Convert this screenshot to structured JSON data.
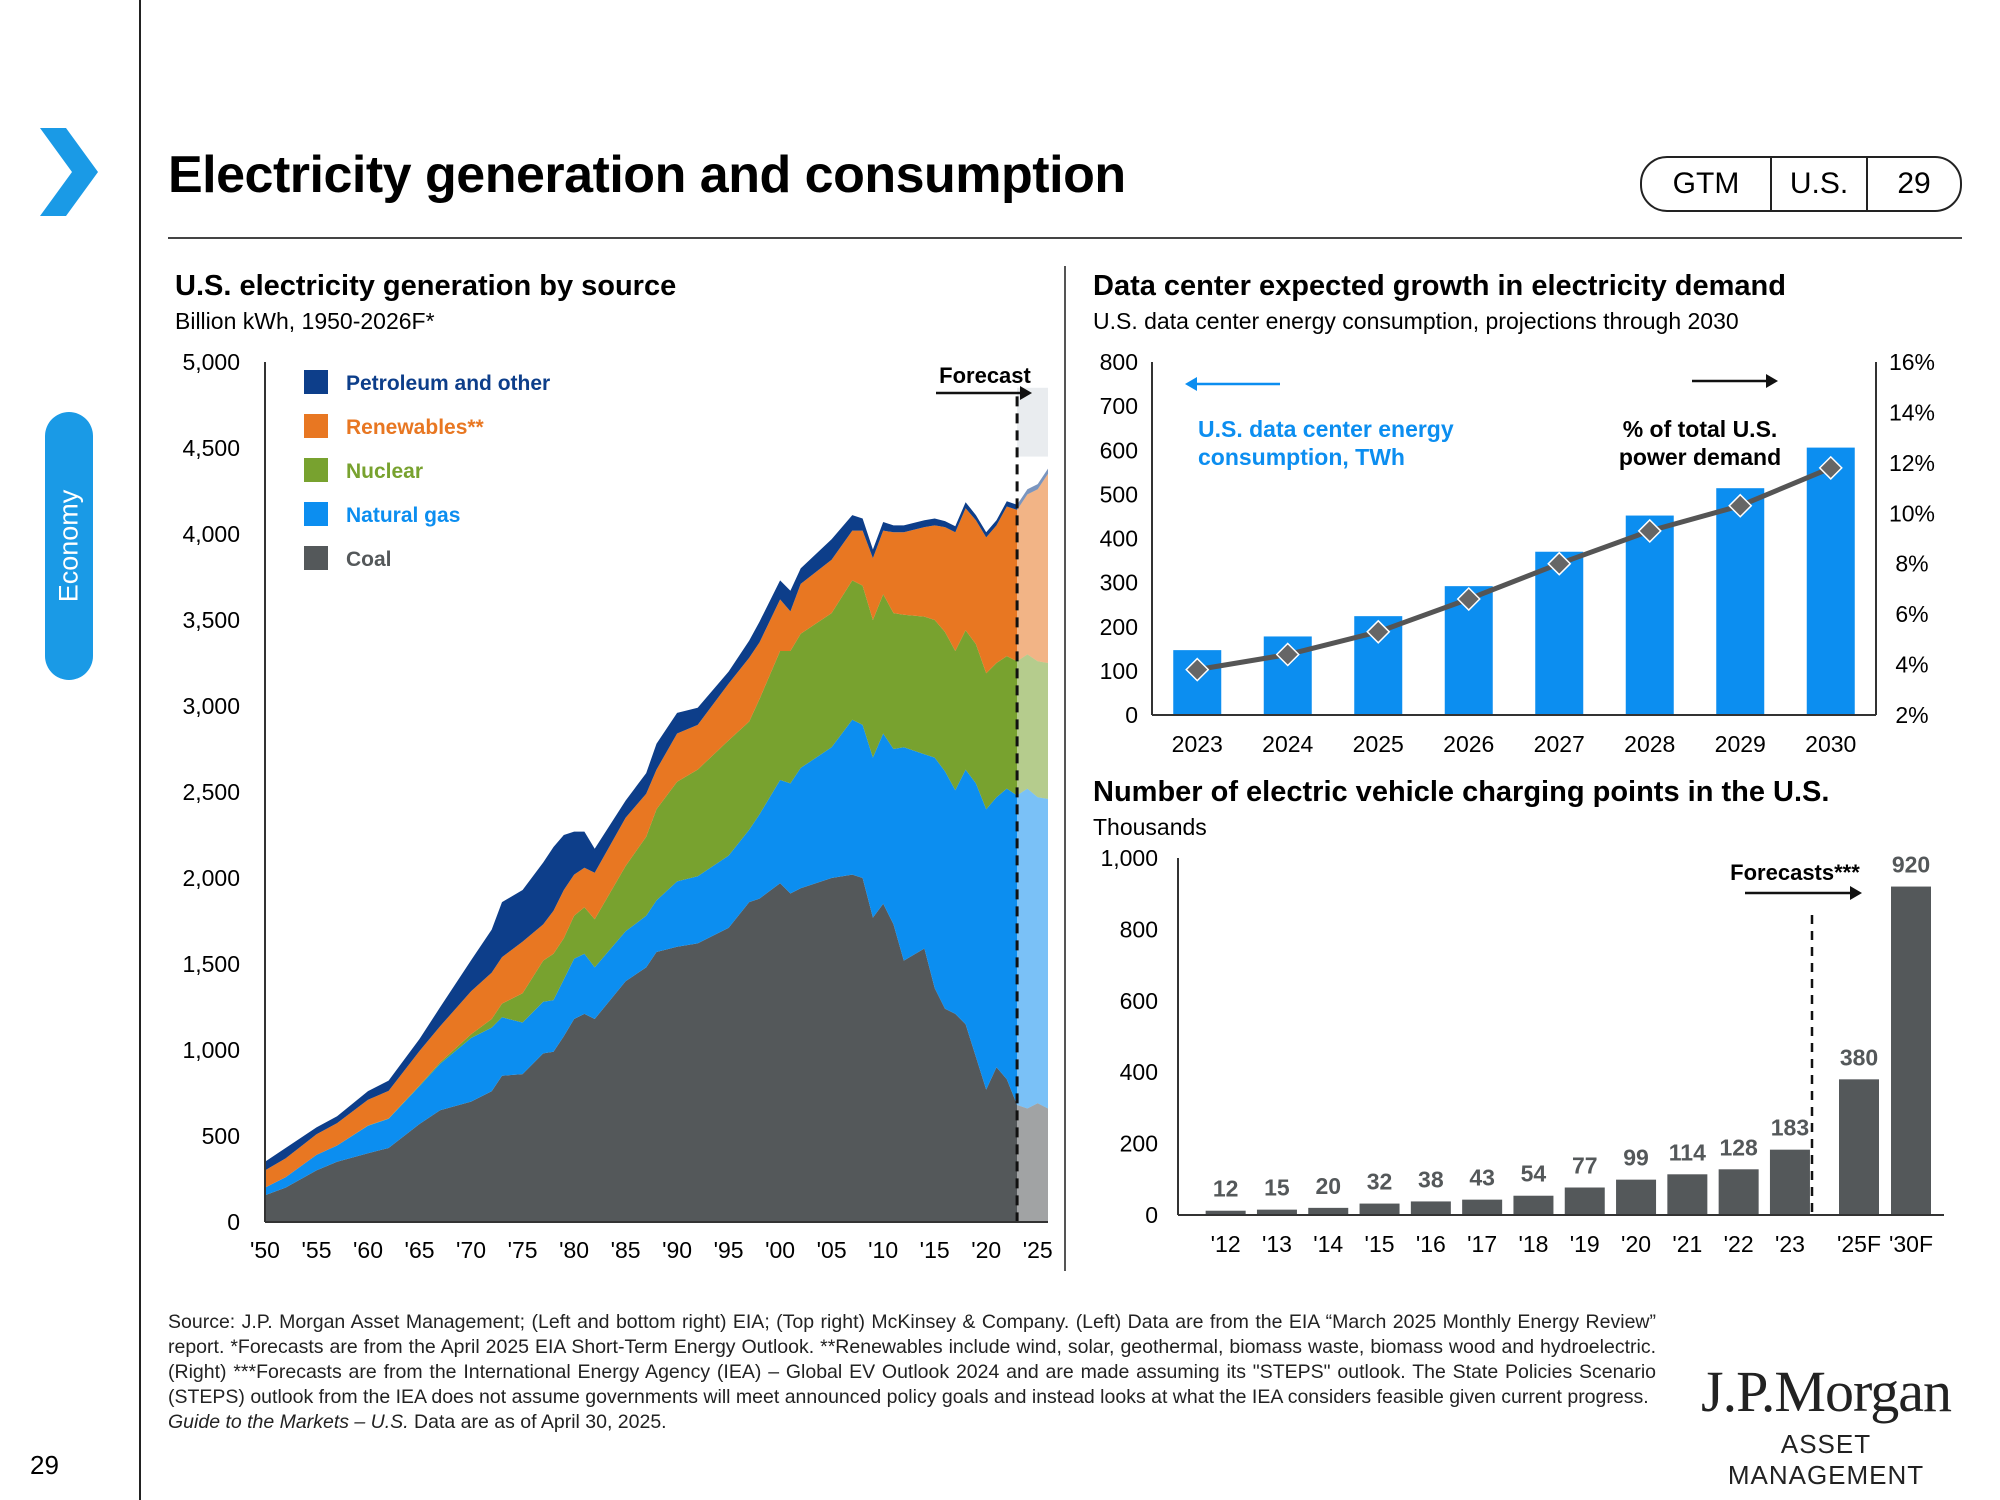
{
  "header": {
    "title": "Electricity generation and consumption",
    "tags": [
      "GTM",
      "U.S.",
      "29"
    ],
    "section": "Economy",
    "page_number": "29"
  },
  "colors": {
    "brand_blue": "#1a9ae6",
    "coal": "#54585a",
    "natural_gas": "#0c8ef0",
    "nuclear": "#78a22f",
    "renewables": "#e87722",
    "petroleum": "#0d3e8a"
  },
  "chart_data": [
    {
      "type": "area",
      "title": "U.S. electricity generation by source",
      "subtitle": "Billion kWh, 1950-2026F*",
      "x_ticks": [
        "'50",
        "'55",
        "'60",
        "'65",
        "'70",
        "'75",
        "'80",
        "'85",
        "'90",
        "'95",
        "'00",
        "'05",
        "'10",
        "'15",
        "'20",
        "'25"
      ],
      "y_ticks": [
        "0",
        "500",
        "1,000",
        "1,500",
        "2,000",
        "2,500",
        "3,000",
        "3,500",
        "4,000",
        "4,500",
        "5,000"
      ],
      "ylim": [
        0,
        5000
      ],
      "xlim": [
        1950,
        2026
      ],
      "forecast_label": "Forecast",
      "forecast_start": 2023,
      "legend_position": "top-left",
      "x": [
        1950,
        1952,
        1955,
        1957,
        1960,
        1962,
        1965,
        1967,
        1970,
        1972,
        1973,
        1975,
        1977,
        1978,
        1979,
        1980,
        1981,
        1982,
        1985,
        1987,
        1988,
        1990,
        1992,
        1995,
        1997,
        1998,
        2000,
        2001,
        2002,
        2005,
        2007,
        2008,
        2009,
        2010,
        2011,
        2012,
        2014,
        2015,
        2016,
        2017,
        2018,
        2019,
        2020,
        2021,
        2022,
        2023,
        2024,
        2025,
        2026
      ],
      "series": [
        {
          "name": "Coal",
          "values": [
            155,
            200,
            300,
            350,
            400,
            430,
            570,
            650,
            700,
            760,
            850,
            860,
            980,
            990,
            1080,
            1180,
            1210,
            1180,
            1400,
            1480,
            1570,
            1600,
            1620,
            1710,
            1860,
            1880,
            1970,
            1910,
            1940,
            2000,
            2020,
            2000,
            1770,
            1850,
            1730,
            1520,
            1590,
            1360,
            1240,
            1210,
            1150,
            960,
            770,
            900,
            830,
            680,
            660,
            690,
            660
          ]
        },
        {
          "name": "Natural gas",
          "values": [
            45,
            60,
            90,
            95,
            160,
            170,
            220,
            270,
            370,
            370,
            340,
            300,
            300,
            300,
            330,
            350,
            350,
            300,
            290,
            300,
            300,
            380,
            390,
            420,
            420,
            490,
            600,
            640,
            700,
            760,
            900,
            890,
            930,
            990,
            1020,
            1240,
            1130,
            1340,
            1380,
            1300,
            1480,
            1590,
            1630,
            1570,
            1690,
            1800,
            1860,
            1780,
            1800
          ]
        },
        {
          "name": "Nuclear",
          "values": [
            0,
            0,
            0,
            0,
            1,
            2,
            4,
            8,
            22,
            50,
            80,
            170,
            240,
            270,
            240,
            250,
            270,
            280,
            380,
            460,
            530,
            580,
            620,
            670,
            630,
            670,
            750,
            770,
            780,
            780,
            810,
            810,
            800,
            810,
            790,
            770,
            800,
            800,
            810,
            810,
            810,
            810,
            790,
            780,
            770,
            780,
            780,
            790,
            790
          ]
        },
        {
          "name": "Renewables**",
          "values": [
            100,
            110,
            120,
            130,
            150,
            160,
            200,
            210,
            250,
            270,
            270,
            300,
            210,
            250,
            280,
            240,
            230,
            270,
            280,
            250,
            230,
            280,
            260,
            330,
            370,
            330,
            300,
            230,
            290,
            310,
            290,
            320,
            360,
            370,
            470,
            480,
            520,
            550,
            610,
            690,
            710,
            720,
            790,
            800,
            870,
            880,
            930,
            1000,
            1100
          ]
        },
        {
          "name": "Petroleum and other",
          "values": [
            50,
            60,
            40,
            40,
            50,
            60,
            70,
            110,
            180,
            250,
            320,
            300,
            360,
            370,
            320,
            250,
            210,
            140,
            100,
            120,
            150,
            120,
            100,
            70,
            100,
            120,
            110,
            120,
            90,
            120,
            90,
            70,
            50,
            50,
            40,
            40,
            40,
            40,
            35,
            35,
            35,
            30,
            30,
            30,
            30,
            30,
            30,
            30,
            30
          ]
        }
      ]
    },
    {
      "type": "bar",
      "title": "Data center expected growth in electricity demand",
      "subtitle": "U.S. data center energy consumption, projections through 2030",
      "categories": [
        "2023",
        "2024",
        "2025",
        "2026",
        "2027",
        "2028",
        "2029",
        "2030"
      ],
      "y_left_ticks": [
        "0",
        "100",
        "200",
        "300",
        "400",
        "500",
        "600",
        "700",
        "800"
      ],
      "y_right_ticks": [
        "2%",
        "4%",
        "6%",
        "8%",
        "10%",
        "12%",
        "14%",
        "16%"
      ],
      "ylim_left": [
        0,
        800
      ],
      "ylim_right": [
        2,
        16
      ],
      "series": [
        {
          "name": "U.S. data center energy consumption, TWh",
          "type": "bar",
          "axis": "left",
          "values": [
            147,
            178,
            224,
            292,
            370,
            452,
            514,
            606
          ]
        },
        {
          "name": "% of total U.S. power demand",
          "type": "line",
          "axis": "right",
          "values": [
            3.8,
            4.4,
            5.3,
            6.6,
            8.0,
            9.3,
            10.3,
            11.8
          ]
        }
      ],
      "labels": {
        "left_series_line1": "U.S. data center energy",
        "left_series_line2": "consumption,  TWh",
        "right_series_line1": "%  of total U.S.",
        "right_series_line2": "power demand"
      }
    },
    {
      "type": "bar",
      "title": "Number of electric vehicle charging points in the U.S.",
      "subtitle": "Thousands",
      "categories": [
        "'12",
        "'13",
        "'14",
        "'15",
        "'16",
        "'17",
        "'18",
        "'19",
        "'20",
        "'21",
        "'22",
        "'23",
        "'25F",
        "'30F"
      ],
      "values": [
        12,
        15,
        20,
        32,
        38,
        43,
        54,
        77,
        99,
        114,
        128,
        183,
        380,
        920
      ],
      "value_labels": [
        "12",
        "15",
        "20",
        "32",
        "38",
        "43",
        "54",
        "77",
        "99",
        "114",
        "128",
        "183",
        "380",
        "920"
      ],
      "y_ticks": [
        "0",
        "200",
        "400",
        "600",
        "800",
        "1,000"
      ],
      "ylim": [
        0,
        1000
      ],
      "forecast_label": "Forecasts***"
    }
  ],
  "footnote": {
    "text": "Source: J.P. Morgan Asset Management; (Left and bottom right) EIA; (Top right) McKinsey & Company. (Left) Data are from the EIA “March 2025 Monthly Energy Review” report. *Forecasts are from the April 2025 EIA Short-Term Energy Outlook. **Renewables include wind, solar, geothermal, biomass waste, biomass wood and hydroelectric. (Right) ***Forecasts are from the International Energy Agency (IEA) – Global EV Outlook 2024 and are made assuming its \"STEPS\" outlook. The State Policies Scenario (STEPS) outlook from the IEA does not assume governments will meet announced policy goals and instead looks at what the IEA considers feasible given current progress.",
    "guide_italic": "Guide to the Markets – U.S.",
    "guide_rest": " Data are as of April 30, 2025."
  },
  "logo": {
    "main": "J.P.Morgan",
    "sub": "ASSET MANAGEMENT"
  }
}
